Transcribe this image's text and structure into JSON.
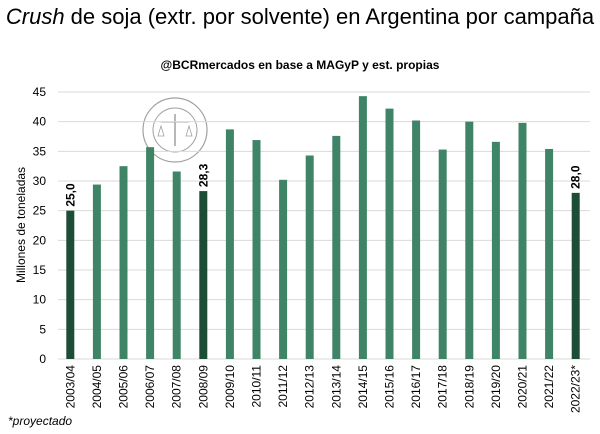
{
  "chart_data": {
    "type": "bar",
    "title_italic": "Crush",
    "title_rest": " de soja (extr. por solvente) en Argentina por campaña",
    "subtitle": "@BCRmercados  en base a MAGyP y est. propias",
    "ylabel": "Millones de toneladas",
    "xlabel": "",
    "ylim": [
      0,
      45
    ],
    "yticks": [
      "0",
      "5",
      "10",
      "15",
      "20",
      "25",
      "30",
      "35",
      "40",
      "45"
    ],
    "grid": true,
    "categories": [
      "2003/04",
      "2004/05",
      "2005/06",
      "2006/07",
      "2007/08",
      "2008/09",
      "2009/10",
      "2010/11",
      "2011/12",
      "2012/13",
      "2013/14",
      "2014/15",
      "2015/16",
      "2016/17",
      "2017/18",
      "2018/19",
      "2019/20",
      "2020/21",
      "2021/22",
      "2022/23*"
    ],
    "values": [
      25.0,
      29.4,
      32.5,
      35.7,
      31.6,
      28.3,
      38.7,
      36.9,
      30.2,
      34.3,
      37.6,
      44.3,
      42.2,
      40.2,
      35.3,
      40.0,
      36.6,
      39.8,
      35.4,
      28.0
    ],
    "highlighted": [
      0,
      5,
      19
    ],
    "data_labels": {
      "0": "25,0",
      "5": "28,3",
      "19": "28,0"
    },
    "colors": {
      "normal": "#3f8467",
      "highlight": "#1d4d37",
      "grid": "#d9d9d9"
    },
    "footnote": "*proyectado",
    "watermark": "BOLSA DE COMERCIO DE ROSARIO"
  }
}
